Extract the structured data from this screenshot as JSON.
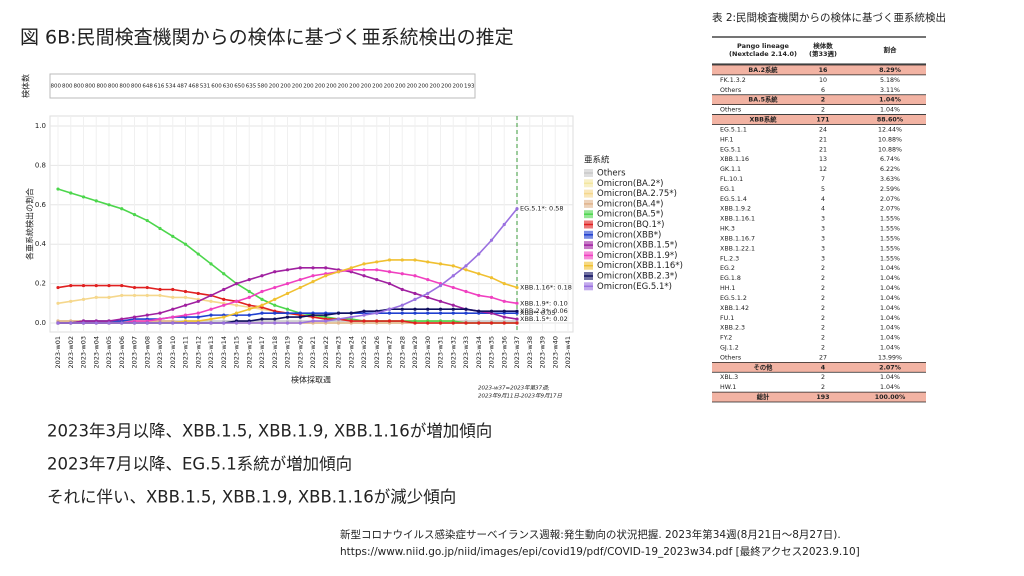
{
  "header": {
    "title": "図 6B:民間検査機関からの検体に基づく亜系統検出の推定"
  },
  "counts": {
    "label": "検体数",
    "values": [
      800,
      800,
      800,
      800,
      800,
      800,
      800,
      800,
      648,
      616,
      534,
      487,
      468,
      531,
      600,
      630,
      650,
      635,
      580,
      200,
      200,
      200,
      200,
      200,
      200,
      200,
      200,
      200,
      200,
      200,
      200,
      200,
      200,
      200,
      200,
      200,
      193
    ]
  },
  "chart_data": {
    "type": "line",
    "xlabel": "検体採取週",
    "ylabel": "各亜系統検出の割合",
    "legend_title": "亜系統",
    "legend": "right",
    "grid": true,
    "footnote": [
      "2023-w37=2023年第37週;",
      "2023年9月11日-2023年9月17日"
    ],
    "categories": [
      "2023-w01",
      "2023-w02",
      "2023-w03",
      "2023-w04",
      "2023-w05",
      "2023-w06",
      "2023-w07",
      "2023-w08",
      "2023-w09",
      "2023-w10",
      "2023-w11",
      "2023-w12",
      "2023-w13",
      "2023-w14",
      "2023-w15",
      "2023-w16",
      "2023-w17",
      "2023-w18",
      "2023-w19",
      "2023-w20",
      "2023-w21",
      "2023-w22",
      "2023-w23",
      "2023-w24",
      "2023-w25",
      "2023-w26",
      "2023-w27",
      "2023-w28",
      "2023-w29",
      "2023-w30",
      "2023-w31",
      "2023-w32",
      "2023-w33",
      "2023-w34",
      "2023-w35",
      "2023-w36",
      "2023-w37",
      "2023-w38",
      "2023-w39",
      "2023-w40",
      "2023-w41"
    ],
    "ylim": [
      0,
      1
    ],
    "yticks": [
      {
        "value": 0,
        "label": "0.0"
      },
      {
        "value": 0.2,
        "label": "0.2"
      },
      {
        "value": 0.4,
        "label": "0.4"
      },
      {
        "value": 0.6,
        "label": "0.6"
      },
      {
        "value": 0.8,
        "label": "0.8"
      },
      {
        "value": 1,
        "label": "1.0"
      }
    ],
    "series": [
      {
        "name": "Others",
        "color": "#c8c8c8",
        "values": [
          0.01,
          0.01,
          0.01,
          0.01,
          0.01,
          0.01,
          0.01,
          0.01,
          0.01,
          0.01,
          0.01,
          0.01,
          0.01,
          0.01,
          0.01,
          0.01,
          0.01,
          0.01,
          0.01,
          0.01,
          0.01,
          0.01,
          0.01,
          0.01,
          0.01,
          0.01,
          0.01,
          0.01,
          0.01,
          0.01,
          0.01,
          0.01,
          0.01,
          0.01,
          0.01,
          0.01,
          0.01,
          null,
          null,
          null,
          null
        ]
      },
      {
        "name": "Omicron(BA.2*)",
        "color": "#f3e6a0",
        "values": [
          0.01,
          0.01,
          0.01,
          0.01,
          0.01,
          0.01,
          0.01,
          0.01,
          0.01,
          0.01,
          0,
          0,
          0,
          0,
          0,
          0,
          0,
          0,
          0,
          0,
          0,
          0,
          0,
          0,
          0,
          0,
          0,
          0,
          0,
          0,
          0,
          0,
          0,
          0,
          0,
          0,
          0,
          null,
          null,
          null,
          null
        ]
      },
      {
        "name": "Omicron(BA.2.75*)",
        "color": "#f5d78c",
        "values": [
          0.1,
          0.11,
          0.12,
          0.13,
          0.13,
          0.14,
          0.14,
          0.14,
          0.14,
          0.13,
          0.13,
          0.12,
          0.11,
          0.1,
          0.09,
          0.08,
          0.07,
          0.06,
          0.05,
          0.04,
          0.03,
          0.03,
          0.02,
          0.02,
          0.01,
          0.01,
          0.01,
          0.01,
          0.01,
          0.01,
          0.01,
          0.01,
          0,
          0,
          0,
          0,
          0,
          null,
          null,
          null,
          null
        ]
      },
      {
        "name": "Omicron(BA.4*)",
        "color": "#e0b48c",
        "values": [
          0.01,
          0.01,
          0.01,
          0.01,
          0.01,
          0.01,
          0.01,
          0.01,
          0.01,
          0.01,
          0,
          0,
          0,
          0,
          0,
          0,
          0,
          0,
          0,
          0,
          0,
          0,
          0,
          0,
          0,
          0,
          0,
          0,
          0,
          0,
          0,
          0,
          0,
          0,
          0,
          0,
          0,
          null,
          null,
          null,
          null
        ]
      },
      {
        "name": "Omicron(BA.5*)",
        "color": "#4cd64c",
        "values": [
          0.68,
          0.66,
          0.64,
          0.62,
          0.6,
          0.58,
          0.55,
          0.52,
          0.48,
          0.44,
          0.4,
          0.35,
          0.3,
          0.25,
          0.2,
          0.16,
          0.12,
          0.09,
          0.07,
          0.05,
          0.04,
          0.03,
          0.02,
          0.02,
          0.01,
          0.01,
          0.01,
          0.01,
          0.01,
          0.01,
          0.01,
          0.01,
          0,
          0,
          0,
          0,
          0,
          null,
          null,
          null,
          null
        ]
      },
      {
        "name": "Omicron(BQ.1*)",
        "color": "#e02020",
        "values": [
          0.18,
          0.19,
          0.19,
          0.19,
          0.19,
          0.19,
          0.18,
          0.18,
          0.17,
          0.17,
          0.16,
          0.15,
          0.14,
          0.12,
          0.11,
          0.09,
          0.08,
          0.06,
          0.05,
          0.04,
          0.03,
          0.02,
          0.02,
          0.01,
          0.01,
          0.01,
          0.01,
          0.01,
          0,
          0,
          0,
          0,
          0,
          0,
          0,
          0,
          0,
          null,
          null,
          null,
          null
        ]
      },
      {
        "name": "Omicron(XBB*)",
        "color": "#2040d0",
        "values": [
          0,
          0,
          0.01,
          0.01,
          0.01,
          0.01,
          0.02,
          0.02,
          0.02,
          0.03,
          0.03,
          0.03,
          0.04,
          0.04,
          0.04,
          0.04,
          0.05,
          0.05,
          0.05,
          0.05,
          0.05,
          0.05,
          0.05,
          0.05,
          0.05,
          0.05,
          0.05,
          0.05,
          0.05,
          0.05,
          0.05,
          0.05,
          0.05,
          0.05,
          0.05,
          0.05,
          0.05,
          null,
          null,
          null,
          null
        ]
      },
      {
        "name": "Omicron(XBB.1.5*)",
        "color": "#a020a0",
        "values": [
          0,
          0,
          0.01,
          0.01,
          0.01,
          0.02,
          0.03,
          0.04,
          0.05,
          0.07,
          0.09,
          0.11,
          0.14,
          0.17,
          0.2,
          0.22,
          0.24,
          0.26,
          0.27,
          0.28,
          0.28,
          0.28,
          0.27,
          0.26,
          0.24,
          0.22,
          0.2,
          0.17,
          0.15,
          0.13,
          0.11,
          0.09,
          0.07,
          0.06,
          0.05,
          0.03,
          0.02,
          null,
          null,
          null,
          null
        ]
      },
      {
        "name": "Omicron(XBB.1.9*)",
        "color": "#f040c0",
        "values": [
          0,
          0,
          0,
          0,
          0,
          0,
          0.01,
          0.01,
          0.02,
          0.03,
          0.04,
          0.05,
          0.07,
          0.09,
          0.11,
          0.13,
          0.16,
          0.18,
          0.2,
          0.22,
          0.24,
          0.25,
          0.26,
          0.27,
          0.27,
          0.27,
          0.26,
          0.25,
          0.24,
          0.22,
          0.2,
          0.18,
          0.16,
          0.14,
          0.13,
          0.11,
          0.1,
          null,
          null,
          null,
          null
        ]
      },
      {
        "name": "Omicron(XBB.1.16*)",
        "color": "#f0c030",
        "values": [
          0,
          0,
          0,
          0,
          0,
          0,
          0,
          0,
          0,
          0,
          0.01,
          0.01,
          0.02,
          0.03,
          0.05,
          0.07,
          0.09,
          0.12,
          0.15,
          0.18,
          0.21,
          0.24,
          0.26,
          0.28,
          0.3,
          0.31,
          0.32,
          0.32,
          0.32,
          0.31,
          0.3,
          0.29,
          0.27,
          0.25,
          0.23,
          0.2,
          0.18,
          null,
          null,
          null,
          null
        ]
      },
      {
        "name": "Omicron(XBB.2.3*)",
        "color": "#101060",
        "values": [
          0,
          0,
          0,
          0,
          0,
          0,
          0,
          0,
          0,
          0,
          0,
          0,
          0,
          0,
          0.01,
          0.01,
          0.02,
          0.02,
          0.03,
          0.03,
          0.04,
          0.04,
          0.05,
          0.05,
          0.06,
          0.06,
          0.07,
          0.07,
          0.07,
          0.07,
          0.07,
          0.07,
          0.07,
          0.06,
          0.06,
          0.06,
          0.06,
          null,
          null,
          null,
          null
        ]
      },
      {
        "name": "Omicron(EG.5.1*)",
        "color": "#9a70e0",
        "values": [
          0,
          0,
          0,
          0,
          0,
          0,
          0,
          0,
          0,
          0,
          0,
          0,
          0,
          0,
          0,
          0,
          0,
          0,
          0,
          0,
          0.01,
          0.01,
          0.02,
          0.03,
          0.04,
          0.05,
          0.07,
          0.09,
          0.12,
          0.15,
          0.19,
          0.24,
          0.29,
          0.35,
          0.42,
          0.5,
          0.58,
          null,
          null,
          null,
          null
        ]
      }
    ],
    "annotations": [
      "EG.5.1*: 0.58",
      "XBB.1.16*: 0.18",
      "XBB.1.9*: 0.10",
      "XBB.2.3*: 0.06",
      "XBB*: 0.05",
      "XBB.1.5*: 0.02"
    ]
  },
  "table": {
    "title": "表 2:民間検査機関からの検体に基づく亜系統検出",
    "columns": [
      [
        "Pango lineage",
        "(Nextclade 2.14.0)"
      ],
      [
        "検体数",
        "(第33週)"
      ],
      [
        "割合"
      ]
    ],
    "rows": [
      {
        "style": "group",
        "cells": [
          "BA.2系統",
          16,
          "8.29%"
        ]
      },
      {
        "cells": [
          "FK.1.3.2",
          10,
          "5.18%"
        ]
      },
      {
        "cells": [
          "Others",
          6,
          "3.11%"
        ]
      },
      {
        "style": "group",
        "cells": [
          "BA.5系統",
          2,
          "1.04%"
        ]
      },
      {
        "cells": [
          "Others",
          2,
          "1.04%"
        ]
      },
      {
        "style": "group",
        "cells": [
          "XBB系統",
          171,
          "88.60%"
        ]
      },
      {
        "style": "red",
        "cells": [
          "EG.5.1.1",
          24,
          "12.44%"
        ]
      },
      {
        "style": "red",
        "cells": [
          "HF.1",
          21,
          "10.88%"
        ]
      },
      {
        "style": "red",
        "cells": [
          "EG.5.1",
          21,
          "10.88%"
        ]
      },
      {
        "cells": [
          "XBB.1.16",
          13,
          "6.74%"
        ]
      },
      {
        "cells": [
          "GK.1.1",
          12,
          "6.22%"
        ]
      },
      {
        "cells": [
          "FL.10.1",
          7,
          "3.63%"
        ]
      },
      {
        "cells": [
          "EG.1",
          5,
          "2.59%"
        ]
      },
      {
        "cells": [
          "EG.5.1.4",
          4,
          "2.07%"
        ]
      },
      {
        "cells": [
          "XBB.1.9.2",
          4,
          "2.07%"
        ]
      },
      {
        "cells": [
          "XBB.1.16.1",
          3,
          "1.55%"
        ]
      },
      {
        "cells": [
          "HK.3",
          3,
          "1.55%"
        ]
      },
      {
        "cells": [
          "XBB.1.16.7",
          3,
          "1.55%"
        ]
      },
      {
        "cells": [
          "XBB.1.22.1",
          3,
          "1.55%"
        ]
      },
      {
        "cells": [
          "FL.2.3",
          3,
          "1.55%"
        ]
      },
      {
        "cells": [
          "EG.2",
          2,
          "1.04%"
        ]
      },
      {
        "cells": [
          "EG.1.8",
          2,
          "1.04%"
        ]
      },
      {
        "cells": [
          "HH.1",
          2,
          "1.04%"
        ]
      },
      {
        "cells": [
          "EG.5.1.2",
          2,
          "1.04%"
        ]
      },
      {
        "cells": [
          "XBB.1.42",
          2,
          "1.04%"
        ]
      },
      {
        "cells": [
          "FU.1",
          2,
          "1.04%"
        ]
      },
      {
        "cells": [
          "XBB.2.3",
          2,
          "1.04%"
        ]
      },
      {
        "cells": [
          "FY.2",
          2,
          "1.04%"
        ]
      },
      {
        "cells": [
          "GJ.1.2",
          2,
          "1.04%"
        ]
      },
      {
        "cells": [
          "Others",
          27,
          "13.99%"
        ]
      },
      {
        "style": "group",
        "cells": [
          "その他",
          4,
          "2.07%"
        ]
      },
      {
        "cells": [
          "XBL.3",
          2,
          "1.04%"
        ]
      },
      {
        "cells": [
          "HW.1",
          2,
          "1.04%"
        ]
      },
      {
        "style": "group",
        "cells": [
          "総計",
          193,
          "100.00%"
        ]
      }
    ]
  },
  "bullets": [
    "2023年3月以降、XBB.1.5, XBB.1.9, XBB.1.16が増加傾向",
    "2023年7月以降、EG.5.1系統が増加傾向",
    "それに伴い、XBB.1.5, XBB.1.9, XBB.1.16が減少傾向"
  ],
  "citation": [
    "新型コロナウイルス感染症サーベイランス週報:発生動向の状況把握. 2023年第34週(8月21日～8月27日).",
    "https://www.niid.go.jp/niid/images/epi/covid19/pdf/COVID-19_2023w34.pdf [最終アクセス2023.9.10]"
  ]
}
